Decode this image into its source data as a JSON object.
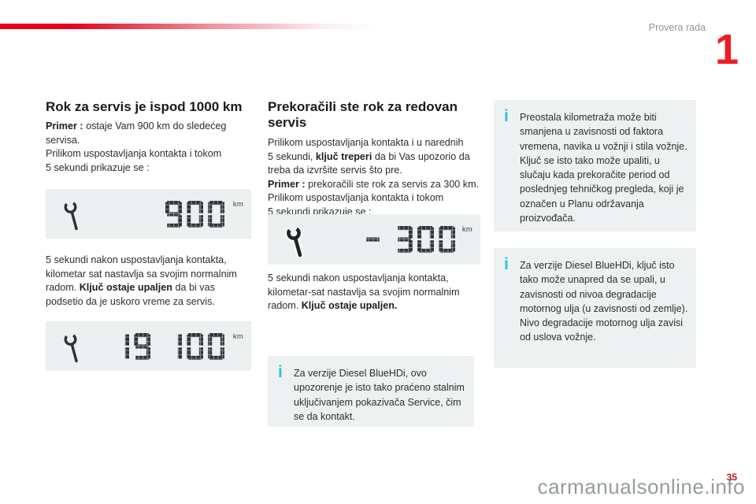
{
  "header": {
    "section_label": "Provera rada",
    "chapter_number": "1"
  },
  "footer": {
    "page_number": "35",
    "watermark": "carmanualsonline.info"
  },
  "colors": {
    "accent_red": "#e2001a",
    "chapter_red": "#ed1c24",
    "info_cyan": "#27c5d1",
    "panel_gray": "#edf0f0",
    "lcd_segment": "#2d3536"
  },
  "sections": {
    "service_below_1000": {
      "heading": "Rok za servis je ispod 1000 km",
      "intro": {
        "example_label": "Primer :",
        "line1_rest": " ostaje Vam 900 km do sledećeg",
        "line2": "servisa.",
        "line3": "Prilikom uspostavljanja kontakta i tokom",
        "line4": "5 sekundi prikazuje se :"
      },
      "display_900": {
        "icon": "service-wrench-icon",
        "value": "900",
        "unit": "km"
      },
      "after": {
        "line1": "5 sekundi nakon uspostavljanja kontakta,",
        "line2": "kilometar sat nastavlja sa svojim normalnim",
        "line3_pre": "radom. ",
        "line3_bold": "Ključ ostaje upaljen",
        "line3_post": " da bi vas",
        "line4": "podsetio da je uskoro vreme za servis."
      },
      "display_odometer": {
        "icon": "service-wrench-icon",
        "value": "19 100",
        "unit": "km"
      }
    },
    "service_overdue": {
      "heading": "Prekoračili ste rok za redovan servis",
      "intro": {
        "line1": "Prilikom uspostavljanja kontakta i u narednih",
        "line2_pre": "5 sekundi, ",
        "line2_bold": "ključ treperi",
        "line2_post": " da bi Vas upozorio da",
        "line3": "treba da izvršite servis što pre.",
        "line4_bold": "Primer :",
        "line4_rest": " prekoračili ste rok za servis za 300 km.",
        "line5": "Prilikom uspostavljanja kontakta i tokom",
        "line6": "5 sekundi prikazuje se :"
      },
      "display_minus300": {
        "icon": "service-wrench-blinking-icon",
        "value": "- 300",
        "unit": "km"
      },
      "after": {
        "line1": "5 sekundi nakon uspostavljanja kontakta,",
        "line2": "kilometar-sat nastavlja sa svojim normalnim",
        "line3_pre": "radom. ",
        "line3_bold": "Ključ ostaje upaljen."
      }
    },
    "notes": {
      "note_service_indicator": {
        "icon": "info-icon",
        "text": "Za verzije Diesel BlueHDi, ovo upozorenje je isto tako praćeno stalnim uključivanjem pokazivača Service, čim se da kontakt."
      },
      "note_remaining_distance": {
        "icon": "info-icon",
        "text": "Preostala kilometraža može biti smanjena u zavisnosti od faktora vremena, navika u vožnji i stila vožnje. Ključ se isto tako može upaliti, u slučaju kada prekoračite period od poslednjeg tehničkog pregleda, koji je označen u Planu održavanja proizvođača."
      },
      "note_oil_degradation": {
        "icon": "info-icon",
        "text": "Za verzije Diesel BlueHDi, ključ isto tako može unapred da se upali, u zavisnosti od nivoa degradacije motornog ulja (u zavisnosti od zemlje). Nivo degradacije motornog ulja zavisi od uslova vožnje."
      }
    }
  }
}
